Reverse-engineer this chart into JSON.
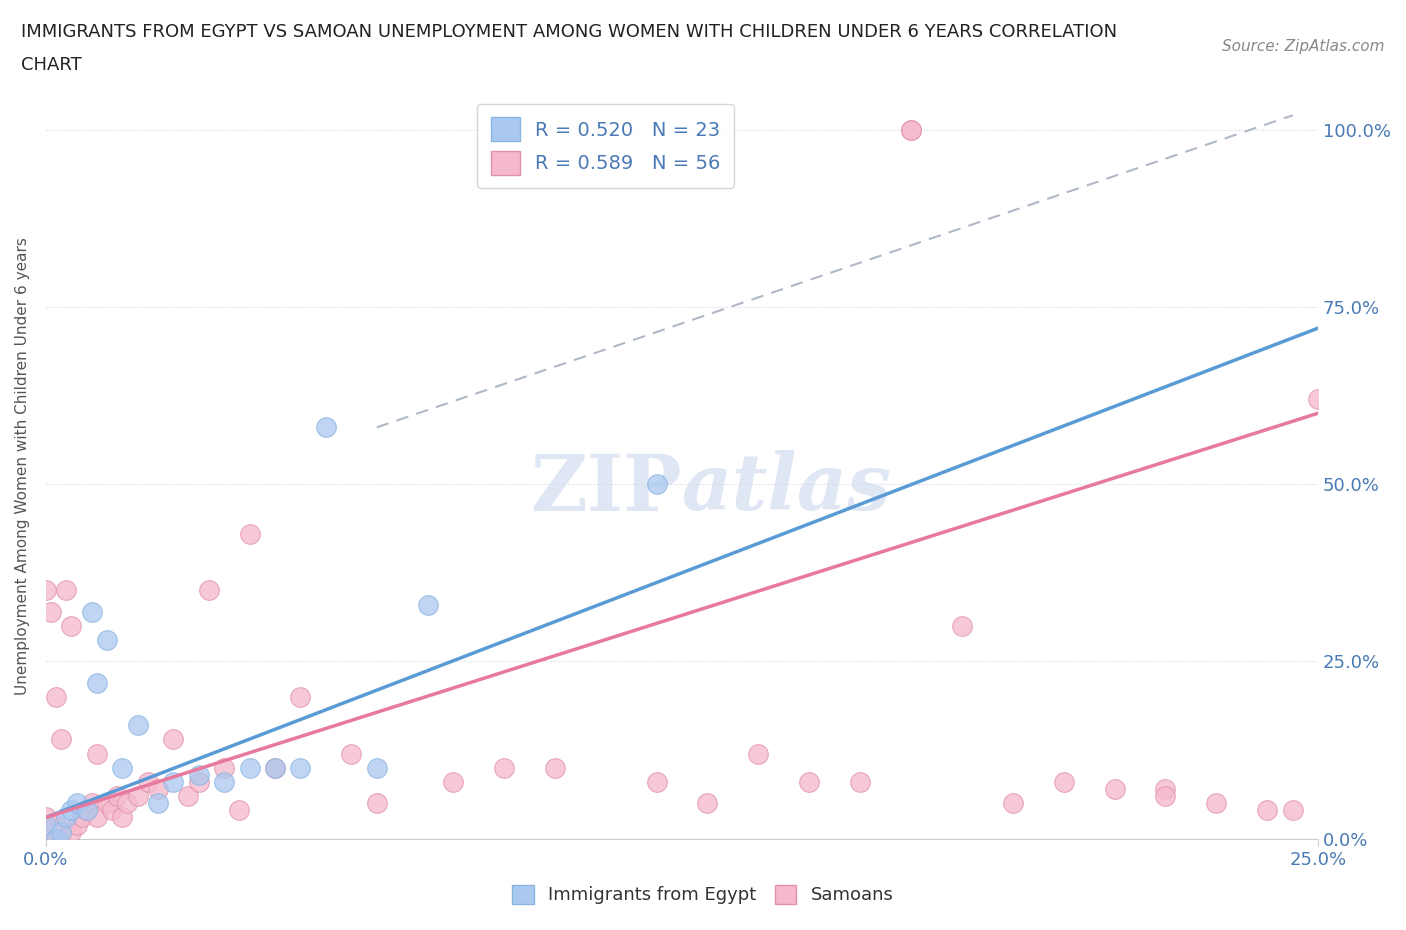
{
  "title_line1": "IMMIGRANTS FROM EGYPT VS SAMOAN UNEMPLOYMENT AMONG WOMEN WITH CHILDREN UNDER 6 YEARS CORRELATION",
  "title_line2": "CHART",
  "source": "Source: ZipAtlas.com",
  "ylabel": "Unemployment Among Women with Children Under 6 years",
  "xlim": [
    0,
    0.25
  ],
  "ylim": [
    0,
    1.05
  ],
  "R_egypt": 0.52,
  "N_egypt": 23,
  "R_samoan": 0.589,
  "N_samoan": 56,
  "color_egypt": "#aac8f0",
  "color_samoan": "#f5b8cc",
  "color_egypt_line": "#5b9bd5",
  "color_samoan_line": "#e8799e",
  "color_dashed_line": "#b0b8c8",
  "background_color": "#ffffff",
  "watermark_color": "#ccd8ee",
  "egypt_x": [
    0.0,
    0.002,
    0.003,
    0.004,
    0.005,
    0.006,
    0.008,
    0.009,
    0.01,
    0.012,
    0.015,
    0.018,
    0.022,
    0.025,
    0.03,
    0.035,
    0.04,
    0.045,
    0.05,
    0.055,
    0.065,
    0.075,
    0.12
  ],
  "egypt_y": [
    0.02,
    0.0,
    0.01,
    0.03,
    0.04,
    0.05,
    0.04,
    0.32,
    0.22,
    0.28,
    0.1,
    0.16,
    0.05,
    0.08,
    0.09,
    0.08,
    0.1,
    0.1,
    0.1,
    0.58,
    0.1,
    0.33,
    0.5
  ],
  "samoan_x": [
    0.0,
    0.0,
    0.001,
    0.001,
    0.002,
    0.002,
    0.003,
    0.003,
    0.004,
    0.005,
    0.005,
    0.006,
    0.007,
    0.008,
    0.009,
    0.01,
    0.01,
    0.012,
    0.013,
    0.014,
    0.015,
    0.016,
    0.018,
    0.02,
    0.022,
    0.025,
    0.028,
    0.03,
    0.032,
    0.035,
    0.038,
    0.04,
    0.045,
    0.05,
    0.06,
    0.065,
    0.08,
    0.09,
    0.1,
    0.12,
    0.13,
    0.14,
    0.15,
    0.16,
    0.17,
    0.17,
    0.18,
    0.19,
    0.2,
    0.21,
    0.22,
    0.22,
    0.23,
    0.24,
    0.245,
    0.25
  ],
  "samoan_y": [
    0.03,
    0.35,
    0.0,
    0.32,
    0.02,
    0.2,
    0.0,
    0.14,
    0.35,
    0.01,
    0.3,
    0.02,
    0.03,
    0.04,
    0.05,
    0.03,
    0.12,
    0.05,
    0.04,
    0.06,
    0.03,
    0.05,
    0.06,
    0.08,
    0.07,
    0.14,
    0.06,
    0.08,
    0.35,
    0.1,
    0.04,
    0.43,
    0.1,
    0.2,
    0.12,
    0.05,
    0.08,
    0.1,
    0.1,
    0.08,
    0.05,
    0.12,
    0.08,
    0.08,
    1.0,
    1.0,
    0.3,
    0.05,
    0.08,
    0.07,
    0.07,
    0.06,
    0.05,
    0.04,
    0.04,
    0.62
  ],
  "egypt_line_x0": 0.0,
  "egypt_line_y0": 0.03,
  "egypt_line_x1": 0.25,
  "egypt_line_y1": 0.72,
  "samoan_line_x0": 0.0,
  "samoan_line_y0": 0.03,
  "samoan_line_x1": 0.25,
  "samoan_line_y1": 0.6,
  "dashed_line_x0": 0.065,
  "dashed_line_y0": 0.58,
  "dashed_line_x1": 0.245,
  "dashed_line_y1": 1.02
}
